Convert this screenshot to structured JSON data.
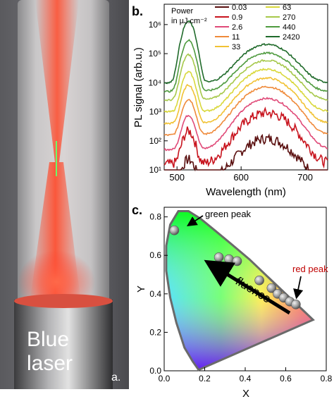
{
  "panel_a": {
    "label_blue_laser": [
      "Blue",
      "laser"
    ],
    "panel_label": "a."
  },
  "panel_b": {
    "panel_label": "b.",
    "legend_title": [
      "Power",
      "in µJ.cm⁻²"
    ]
  },
  "panel_c": {
    "panel_label": "c.",
    "annotation_green": "green peak",
    "annotation_red": "red peak",
    "arrow_label": "fluence"
  },
  "chart_data": [
    {
      "type": "line",
      "xlabel": "Wavelength (nm)",
      "ylabel": "PL signal (arb.u.)",
      "xlim": [
        480,
        735
      ],
      "ylim_log10": [
        1,
        6.7
      ],
      "log_y": true,
      "x_ticks": [
        "500",
        "600",
        "700"
      ],
      "y_ticks": [
        "10¹",
        "10²",
        "10³",
        "10⁴",
        "10⁵",
        "10⁶"
      ],
      "legend_placement": "top-right",
      "series": [
        {
          "name": "0.03",
          "color": "#5a0f0f",
          "green_log": 1.25,
          "red_log": 2.05,
          "base_log": 1.0
        },
        {
          "name": "0.9",
          "color": "#c8141e",
          "green_log": 2.3,
          "red_log": 2.95,
          "base_log": 1.5
        },
        {
          "name": "2.6",
          "color": "#e04a78",
          "green_log": 2.85,
          "red_log": 3.45,
          "base_log": 2.0
        },
        {
          "name": "11",
          "color": "#ef8a3a",
          "green_log": 3.4,
          "red_log": 3.85,
          "base_log": 2.5
        },
        {
          "name": "33",
          "color": "#f1c234",
          "green_log": 3.9,
          "red_log": 4.15,
          "base_log": 2.9
        },
        {
          "name": "63",
          "color": "#d9d83c",
          "green_log": 4.35,
          "red_log": 4.45,
          "base_log": 3.3
        },
        {
          "name": "270",
          "color": "#a6c84a",
          "green_log": 4.95,
          "red_log": 4.75,
          "base_log": 3.7
        },
        {
          "name": "440",
          "color": "#4e9a3e",
          "green_log": 5.45,
          "red_log": 5.0,
          "base_log": 4.0
        },
        {
          "name": "2420",
          "color": "#1f6a2a",
          "green_log": 6.1,
          "red_log": 5.3,
          "base_log": 4.3
        }
      ]
    },
    {
      "type": "scatter",
      "xlabel": "X",
      "ylabel": "Y",
      "xlim": [
        0.0,
        0.8
      ],
      "ylim": [
        0.0,
        0.85
      ],
      "x_ticks": [
        "0.0",
        "0.2",
        "0.4",
        "0.6",
        "0.8"
      ],
      "y_ticks": [
        "0.0",
        "0.2",
        "0.4",
        "0.6",
        "0.8"
      ],
      "points": [
        {
          "x": 0.05,
          "y": 0.73
        },
        {
          "x": 0.27,
          "y": 0.59
        },
        {
          "x": 0.32,
          "y": 0.58
        },
        {
          "x": 0.36,
          "y": 0.57
        },
        {
          "x": 0.47,
          "y": 0.47
        },
        {
          "x": 0.53,
          "y": 0.43
        },
        {
          "x": 0.56,
          "y": 0.4
        },
        {
          "x": 0.59,
          "y": 0.38
        },
        {
          "x": 0.62,
          "y": 0.36
        },
        {
          "x": 0.65,
          "y": 0.345
        }
      ]
    }
  ]
}
